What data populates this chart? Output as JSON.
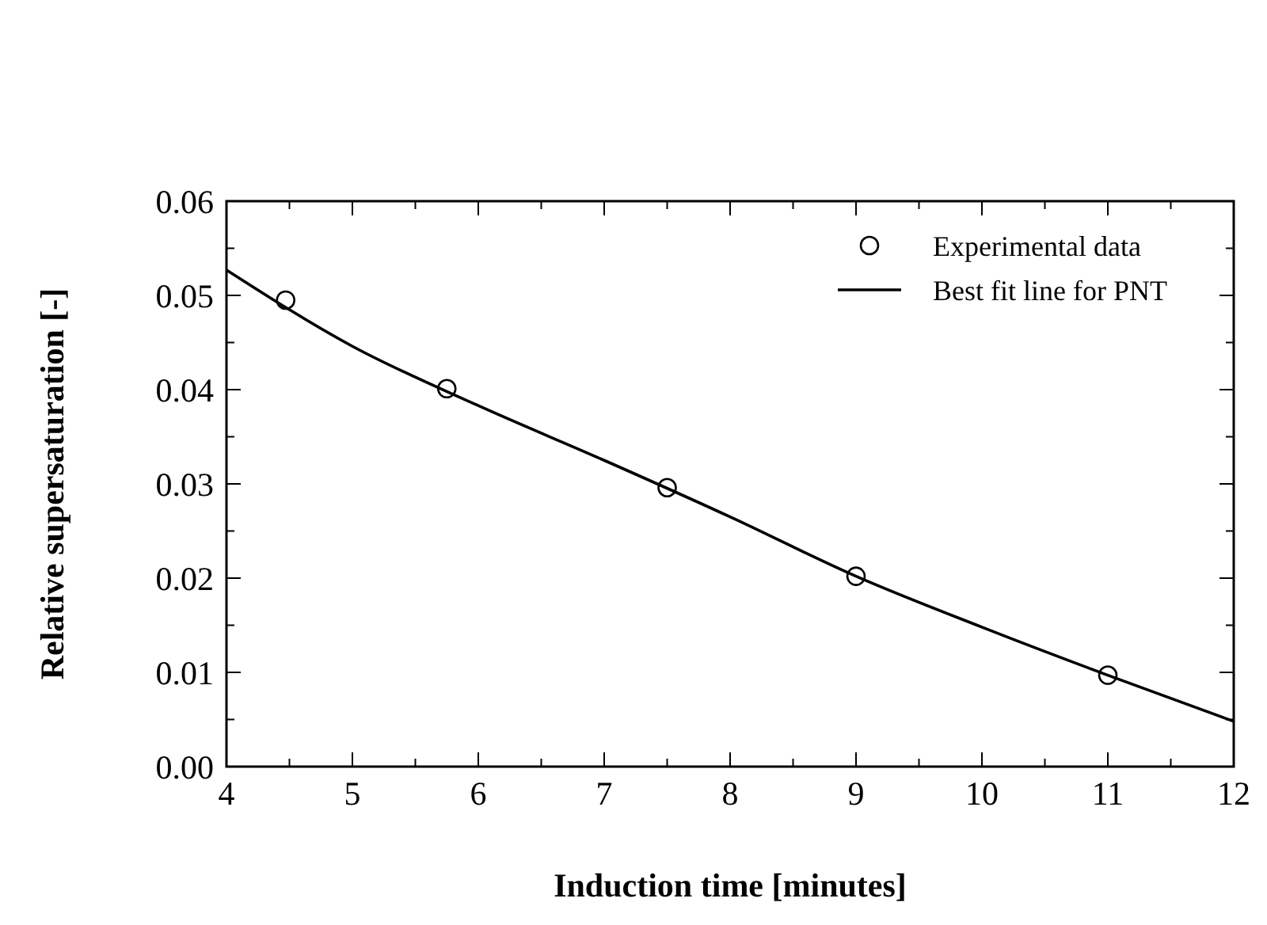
{
  "chart_data": {
    "type": "scatter",
    "xlabel": "Induction time [minutes]",
    "ylabel": "Relative supersaturation [-]",
    "xlim": [
      4,
      12
    ],
    "ylim": [
      0,
      0.06
    ],
    "xticks": [
      4,
      {
        "value": 4.5,
        "label": null
      },
      5,
      {
        "value": 5.5,
        "label": null
      },
      6,
      {
        "value": 6.5,
        "label": null
      },
      7,
      {
        "value": 7.5,
        "label": null
      },
      8,
      {
        "value": 8.5,
        "label": null
      },
      9,
      {
        "value": 9.5,
        "label": null
      },
      10,
      {
        "value": 10.5,
        "label": null
      },
      11,
      {
        "value": 11.5,
        "label": null
      },
      12
    ],
    "yticks": [
      {
        "value": 0,
        "label": "0.00"
      },
      {
        "value": 0.005,
        "label": null
      },
      {
        "value": 0.01,
        "label": "0.01"
      },
      {
        "value": 0.015,
        "label": null
      },
      {
        "value": 0.02,
        "label": "0.02"
      },
      {
        "value": 0.025,
        "label": null
      },
      {
        "value": 0.03,
        "label": "0.03"
      },
      {
        "value": 0.035,
        "label": null
      },
      {
        "value": 0.04,
        "label": "0.04"
      },
      {
        "value": 0.045,
        "label": null
      },
      {
        "value": 0.05,
        "label": "0.05"
      },
      {
        "value": 0.055,
        "label": null
      },
      {
        "value": 0.06,
        "label": "0.06"
      }
    ],
    "legend": "top right",
    "grid": false,
    "series": [
      {
        "name": "Experimental data",
        "marker": "circle",
        "color": "#000000",
        "x": [
          4.47,
          5.75,
          7.5,
          9.0,
          11.0
        ],
        "values": [
          0.0495,
          0.0401,
          0.0296,
          0.0202,
          0.0097
        ]
      },
      {
        "name": "Best fit line for PNT",
        "type": "line",
        "marker": "none",
        "line_style": "solid",
        "color": "#000000",
        "x": [
          4,
          5,
          6,
          7,
          8,
          9,
          10,
          11,
          12
        ],
        "values": [
          0.0527,
          0.0446,
          0.0383,
          0.0325,
          0.0265,
          0.0202,
          0.0148,
          0.0097,
          0.0048
        ]
      }
    ]
  }
}
